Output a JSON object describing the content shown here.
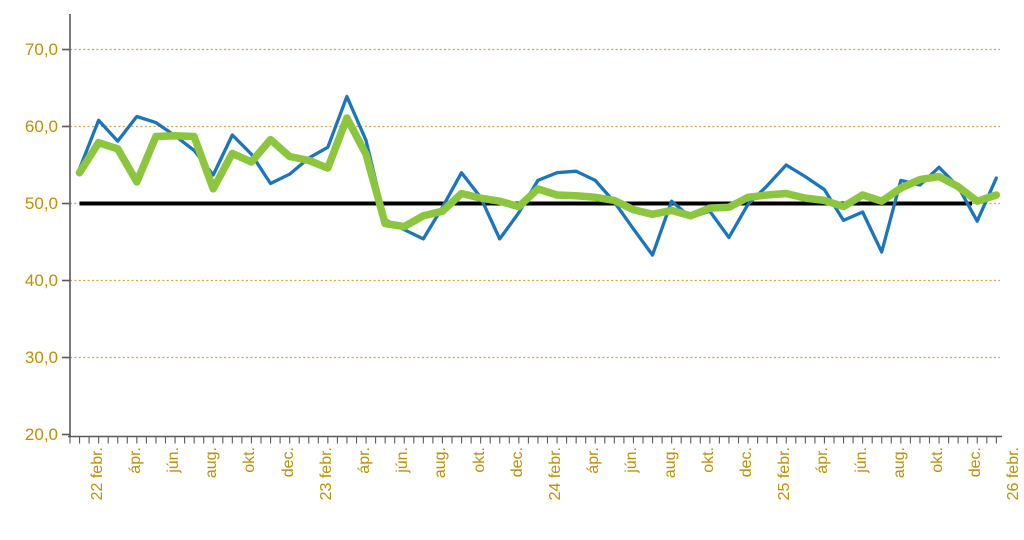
{
  "chart_data": {
    "type": "line",
    "title": "",
    "xlabel": "",
    "ylabel": "",
    "ylim": [
      20,
      70
    ],
    "grid": "horizontal-dashed-gold",
    "legend_position": "none",
    "y_tick_labels": [
      "70,0",
      "60,0",
      "50,0",
      "40,0",
      "30,0",
      "20,0"
    ],
    "y_tick_values": [
      70,
      60,
      50,
      40,
      30,
      20
    ],
    "x_tick_labels": [
      "22 febr.",
      "ápr.",
      "jún.",
      "aug.",
      "okt.",
      "dec.",
      "23 febr.",
      "ápr.",
      "jún.",
      "aug.",
      "okt.",
      "dec.",
      "24 febr.",
      "ápr.",
      "jún.",
      "aug.",
      "okt.",
      "dec.",
      "25 febr.",
      "ápr.",
      "jún.",
      "aug.",
      "okt.",
      "dec.",
      "26 febr."
    ],
    "x_label_every_n_points": 2,
    "points_count": 49,
    "colors": {
      "monthly_line": "#1B75BC",
      "smoothed_line": "#8CC63F",
      "reference_line": "#000000",
      "axis": "#595959",
      "grid_and_labels_gold": "#BF8F00",
      "gridline_gold": "#D2A544"
    },
    "series": [
      {
        "name": "monthly-index",
        "color": "#1B75BC",
        "stroke_width": 3.3,
        "values": [
          54.5,
          60.8,
          58.1,
          61.3,
          60.5,
          58.8,
          56.9,
          53.7,
          58.9,
          56.4,
          52.6,
          53.8,
          55.9,
          57.3,
          63.9,
          58.2,
          47.9,
          46.6,
          45.4,
          49.5,
          54.0,
          50.8,
          45.4,
          48.8,
          53.0,
          54.0,
          54.2,
          53.0,
          50.2,
          46.7,
          43.3,
          50.3,
          48.2,
          49.0,
          45.6,
          49.9,
          52.3,
          55.0,
          53.5,
          51.8,
          47.8,
          48.9,
          43.7,
          53.0,
          52.4,
          54.7,
          52.2,
          47.7,
          53.3
        ]
      },
      {
        "name": "smoothed-index",
        "color": "#8CC63F",
        "stroke_width": 7.5,
        "values": [
          54.0,
          57.9,
          57.1,
          52.8,
          58.7,
          58.8,
          58.7,
          51.9,
          56.5,
          55.4,
          58.3,
          56.1,
          55.6,
          54.6,
          61.1,
          56.4,
          47.4,
          47.0,
          48.4,
          49.0,
          51.3,
          50.7,
          50.3,
          49.6,
          51.9,
          51.1,
          51.0,
          50.8,
          50.4,
          49.2,
          48.6,
          49.1,
          48.4,
          49.4,
          49.5,
          50.8,
          51.1,
          51.3,
          50.7,
          50.4,
          49.6,
          51.1,
          50.3,
          52.0,
          53.1,
          53.5,
          52.2,
          50.3,
          51.1
        ]
      },
      {
        "name": "reference-50-line",
        "color": "#000000",
        "stroke_width": 4,
        "constant_value": 50
      }
    ]
  }
}
